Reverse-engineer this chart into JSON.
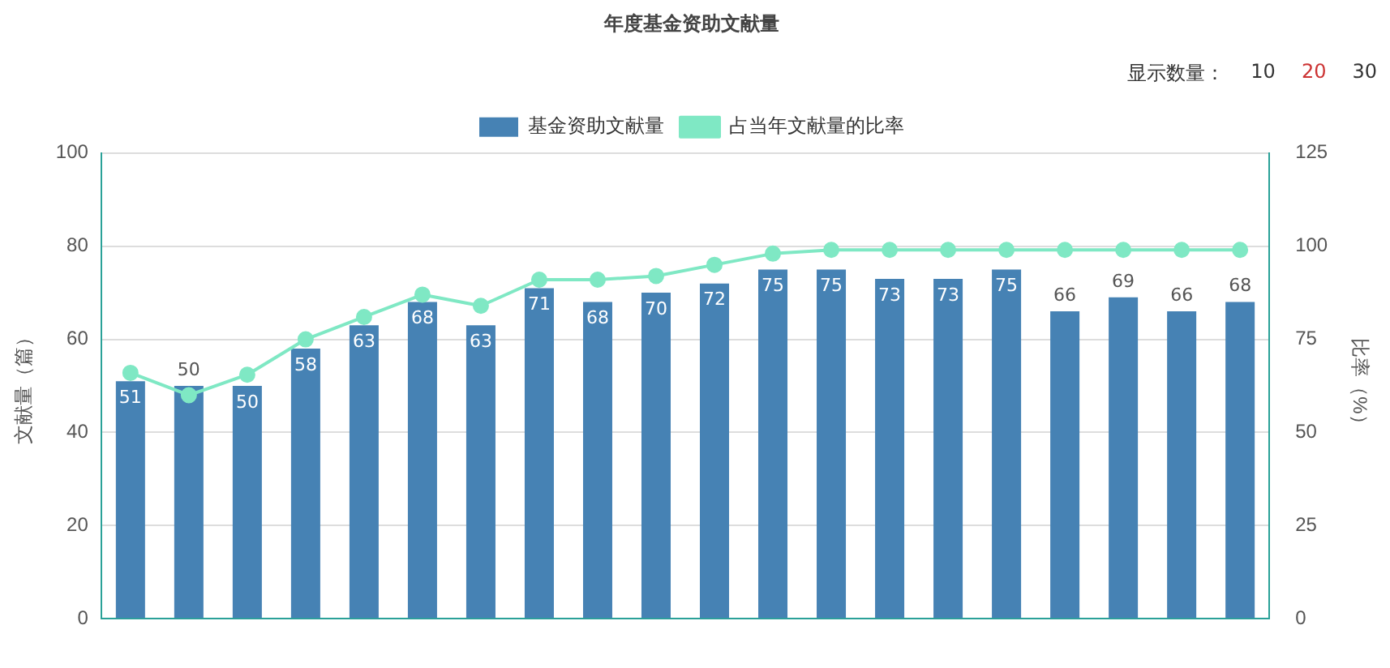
{
  "chart_data": {
    "type": "bar",
    "title": "年度基金资助文献量",
    "ylabel": "文献量（篇）",
    "y2label": "比率（%）",
    "annotations": [
      "显示数量：",
      "10",
      "20",
      "30"
    ],
    "categories": [
      null,
      null,
      null,
      null,
      null,
      null,
      null,
      null,
      null,
      null,
      null,
      null,
      null,
      null,
      null,
      null,
      null,
      null,
      null,
      null
    ],
    "series": [
      {
        "name": "基金资助文献量",
        "color": "#4682b4",
        "values": [
          51,
          50,
          50,
          58,
          63,
          68,
          63,
          71,
          68,
          70,
          72,
          75,
          75,
          73,
          73,
          75,
          66,
          69,
          66,
          68
        ],
        "value_labels": [
          "51",
          "50",
          "50",
          "58",
          "63",
          "68",
          "63",
          "71",
          "68",
          "70",
          "72",
          "75",
          "75",
          "73",
          "73",
          "75",
          "66",
          "69",
          "66",
          "68"
        ]
      },
      {
        "name": "占当年文献量的比率",
        "type": "line",
        "axis": "y2",
        "color": "#7fe8c4",
        "marker": "circle",
        "values": [
          66,
          60,
          65.5,
          75,
          81,
          87,
          84,
          91,
          91,
          92,
          95,
          98,
          99,
          99,
          99,
          99,
          99,
          99,
          99,
          99
        ]
      }
    ],
    "ylim": [
      0,
      100
    ],
    "yticks": [
      0,
      20,
      40,
      60,
      80,
      100
    ],
    "y2lim": [
      0,
      125
    ],
    "y2ticks": [
      0,
      25,
      50,
      75,
      100,
      125
    ],
    "grid": "y",
    "legend": "top"
  }
}
